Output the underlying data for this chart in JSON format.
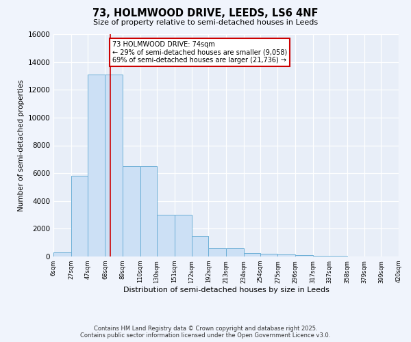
{
  "title": "73, HOLMWOOD DRIVE, LEEDS, LS6 4NF",
  "subtitle": "Size of property relative to semi-detached houses in Leeds",
  "xlabel": "Distribution of semi-detached houses by size in Leeds",
  "ylabel": "Number of semi-detached properties",
  "bin_edges": [
    6,
    27,
    47,
    68,
    89,
    110,
    130,
    151,
    172,
    192,
    213,
    234,
    254,
    275,
    296,
    317,
    337,
    358,
    379,
    399,
    420
  ],
  "bar_heights": [
    300,
    5800,
    13100,
    13100,
    6500,
    6500,
    3000,
    3000,
    1500,
    600,
    600,
    250,
    200,
    130,
    100,
    70,
    50,
    20,
    10,
    5
  ],
  "bar_color": "#cce0f5",
  "bar_edge_color": "#6baed6",
  "vline_x": 74,
  "vline_color": "#cc0000",
  "annotation_text": "73 HOLMWOOD DRIVE: 74sqm\n← 29% of semi-detached houses are smaller (9,058)\n69% of semi-detached houses are larger (21,736) →",
  "annotation_box_color": "#cc0000",
  "ylim": [
    0,
    16000
  ],
  "yticks": [
    0,
    2000,
    4000,
    6000,
    8000,
    10000,
    12000,
    14000,
    16000
  ],
  "xtick_labels": [
    "6sqm",
    "27sqm",
    "47sqm",
    "68sqm",
    "89sqm",
    "110sqm",
    "130sqm",
    "151sqm",
    "172sqm",
    "192sqm",
    "213sqm",
    "234sqm",
    "254sqm",
    "275sqm",
    "296sqm",
    "317sqm",
    "337sqm",
    "358sqm",
    "379sqm",
    "399sqm",
    "420sqm"
  ],
  "background_color": "#f0f4fc",
  "plot_bg_color": "#e8eef8",
  "grid_color": "#ffffff",
  "footer_line1": "Contains HM Land Registry data © Crown copyright and database right 2025.",
  "footer_line2": "Contains public sector information licensed under the Open Government Licence v3.0."
}
